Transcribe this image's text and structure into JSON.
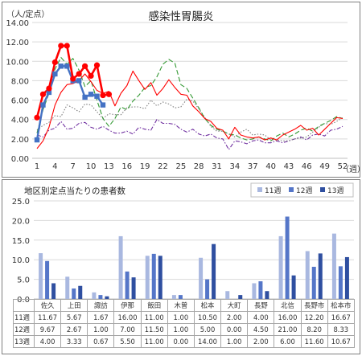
{
  "colors": {
    "y2018": "#ff0000",
    "y2019": "#ff0000",
    "y2020": "#4472c4",
    "y2021": "#339933",
    "y2022": "#7f7f7f",
    "y2023": "#7030a0",
    "w11": "#a9b8e0",
    "w12": "#5576c8",
    "w13": "#2f4fa0",
    "grid": "#d9d9d9"
  },
  "chart_data": [
    {
      "type": "line",
      "title": "感染性胃腸炎",
      "ylabel": "（人/定点）",
      "xlabel": "（週）",
      "ylim": [
        0,
        14
      ],
      "yticks": [
        "0.00",
        "2.00",
        "4.00",
        "6.00",
        "8.00",
        "10.00",
        "12.00",
        "14.00"
      ],
      "xticks": [
        "1",
        "4",
        "7",
        "10",
        "13",
        "16",
        "19",
        "22",
        "25",
        "28",
        "31",
        "34",
        "37",
        "40",
        "43",
        "46",
        "49",
        "52"
      ],
      "x_range": [
        1,
        52
      ],
      "grid": "horizontal",
      "series": [
        {
          "role": "current",
          "color_key": "y2018",
          "marker": "circle",
          "values": [
            4.2,
            6.6,
            7.2,
            9.9,
            11.6,
            11.6,
            8.2,
            8.7,
            9.5,
            8.5,
            9.6,
            6.5,
            6.6
          ]
        },
        {
          "role": "marked",
          "color_key": "y2020",
          "marker": "square",
          "values": [
            1.9,
            5.5,
            6.8,
            8.7,
            9.5,
            9.5,
            8.0,
            8.0,
            6.3,
            6.6,
            6.4,
            5.5
          ]
        },
        {
          "role": "plain",
          "color_key": "y2019",
          "dash": "solid",
          "values": [
            1.0,
            1.8,
            3.2,
            5.5,
            6.8,
            7.6,
            7.7,
            8.0,
            8.7,
            7.9,
            7.0,
            6.7,
            6.9,
            5.4,
            6.7,
            7.5,
            9.0,
            8.0,
            7.1,
            7.8,
            6.5,
            7.2,
            8.1,
            7.3,
            6.6,
            6.5,
            5.4,
            4.8,
            4.1,
            3.8,
            3.1,
            2.9,
            2.0,
            3.2,
            2.4,
            2.2,
            2.1,
            2.2,
            1.9,
            2.1,
            1.9,
            2.4,
            2.7,
            3.0,
            3.4,
            2.9,
            3.1,
            2.4,
            3.0,
            3.6,
            4.2,
            4.1
          ]
        },
        {
          "role": "plain",
          "color_key": "y2021",
          "dash": "long",
          "values": [
            2.6,
            5.0,
            6.7,
            9.2,
            10.4,
            9.7,
            10.3,
            9.1,
            7.4,
            8.0,
            6.0,
            4.1,
            3.3,
            4.1,
            5.3,
            5.0,
            5.9,
            6.5,
            7.3,
            7.5,
            8.4,
            9.7,
            10.2,
            9.8,
            7.6,
            7.2,
            6.2,
            5.2,
            4.1,
            3.4,
            3.0,
            2.8,
            2.5,
            2.4,
            2.1,
            1.9,
            2.0,
            2.2,
            2.0,
            1.8,
            2.3,
            2.6,
            2.2,
            2.5,
            2.9,
            3.1,
            2.8,
            3.3,
            3.6,
            3.9,
            4.3,
            4.1
          ]
        },
        {
          "role": "plain",
          "color_key": "y2022",
          "dash": "dot",
          "values": [
            2.9,
            3.4,
            3.7,
            4.4,
            4.3,
            5.5,
            5.2,
            4.8,
            5.6,
            5.5,
            4.8,
            4.1,
            4.6,
            4.5,
            4.5,
            5.2,
            5.3,
            5.3,
            5.1,
            6.0,
            5.4,
            5.8,
            5.6,
            5.2,
            5.3,
            6.1,
            5.9,
            5.1,
            4.2,
            3.3,
            2.8,
            2.8,
            2.5,
            2.2,
            2.7,
            3.0,
            2.4,
            2.5,
            2.4,
            1.9,
            1.9,
            1.8,
            1.8,
            2.0,
            2.1,
            2.2,
            2.7,
            3.2,
            3.6,
            3.5,
            3.8,
            4.2
          ]
        },
        {
          "role": "plain",
          "color_key": "y2023",
          "dash": "dashdot",
          "values": [
            2.4,
            2.2,
            2.9,
            3.1,
            3.8,
            3.0,
            3.1,
            3.6,
            3.7,
            3.2,
            3.0,
            3.3,
            2.9,
            2.6,
            2.6,
            2.8,
            2.5,
            3.2,
            3.0,
            2.9,
            4.0,
            3.6,
            3.6,
            3.5,
            3.0,
            2.7,
            3.0,
            2.5,
            2.3,
            2.5,
            2.1,
            2.0,
            0.9,
            1.8,
            1.7,
            1.5,
            1.8,
            1.9,
            1.6,
            1.6,
            1.8,
            1.6,
            1.8,
            2.0,
            2.2,
            1.9,
            2.4,
            2.5,
            2.3,
            2.9,
            3.0,
            3.3
          ]
        }
      ]
    },
    {
      "type": "bar",
      "title": "地区別定点当たりの患者数",
      "ylim": [
        0,
        25
      ],
      "yticks": [
        "0.0",
        "5.0",
        "10.0",
        "15.0",
        "20.0",
        "25.0"
      ],
      "categories": [
        "佐久",
        "上田",
        "諏訪",
        "伊那",
        "飯田",
        "木曽",
        "松本",
        "大町",
        "長野",
        "北信",
        "長野市",
        "松本市"
      ],
      "series": [
        {
          "name": "11週",
          "color_key": "w11",
          "values": [
            11.67,
            5.67,
            1.67,
            16.0,
            11.0,
            1.0,
            10.5,
            2.0,
            4.0,
            16.0,
            12.2,
            16.67
          ]
        },
        {
          "name": "12週",
          "color_key": "w12",
          "values": [
            9.67,
            2.67,
            1.0,
            7.0,
            11.5,
            1.0,
            5.0,
            0.0,
            4.5,
            21.0,
            8.2,
            8.33
          ]
        },
        {
          "name": "13週",
          "color_key": "w13",
          "values": [
            4.0,
            3.33,
            0.67,
            5.5,
            11.0,
            0.0,
            14.0,
            1.0,
            2.0,
            6.0,
            11.6,
            10.67
          ]
        }
      ],
      "table": {
        "headers": [
          "佐久",
          "上田",
          "諏訪",
          "伊那",
          "飯田",
          "木曽",
          "松本",
          "大町",
          "長野",
          "北信",
          "長野市",
          "松本市"
        ],
        "rows": [
          {
            "label": "11週",
            "color_key": "w11",
            "cells": [
              "11.67",
              "5.67",
              "1.67",
              "16.00",
              "11.00",
              "1.00",
              "10.50",
              "2.00",
              "4.00",
              "16.00",
              "12.20",
              "16.67"
            ]
          },
          {
            "label": "12週",
            "color_key": "w12",
            "cells": [
              "9.67",
              "2.67",
              "1.00",
              "7.00",
              "11.50",
              "1.00",
              "5.00",
              "0.00",
              "4.50",
              "21.00",
              "8.20",
              "8.33"
            ]
          },
          {
            "label": "13週",
            "color_key": "w13",
            "cells": [
              "4.00",
              "3.33",
              "0.67",
              "5.50",
              "11.00",
              "0.00",
              "14.00",
              "1.00",
              "2.00",
              "6.00",
              "11.60",
              "10.67"
            ]
          }
        ]
      }
    }
  ]
}
